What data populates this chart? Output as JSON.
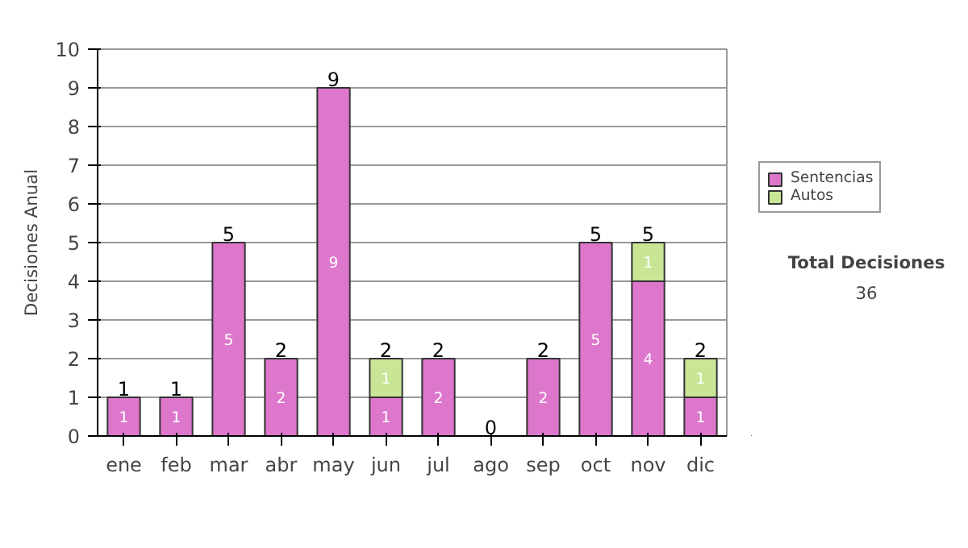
{
  "chart_data": {
    "type": "bar",
    "stacked": true,
    "ylabel": "Decisiones Anual",
    "categories": [
      "ene",
      "feb",
      "mar",
      "abr",
      "may",
      "jun",
      "jul",
      "ago",
      "sep",
      "oct",
      "nov",
      "dic"
    ],
    "series": [
      {
        "name": "Sentencias",
        "color": "#dd77cc",
        "values": [
          1,
          1,
          5,
          2,
          9,
          1,
          2,
          0,
          2,
          5,
          4,
          1
        ],
        "value_labels": [
          "1",
          "1",
          "5",
          "2",
          "9",
          "1",
          "2",
          null,
          "2",
          "5",
          "4",
          "1"
        ]
      },
      {
        "name": "Autos",
        "color": "#c8e696",
        "values": [
          null,
          null,
          null,
          null,
          null,
          1,
          null,
          null,
          null,
          null,
          1,
          1
        ],
        "value_labels": [
          null,
          null,
          null,
          null,
          null,
          "1",
          null,
          null,
          null,
          null,
          "1",
          "1"
        ]
      }
    ],
    "totals": [
      "1",
      "1",
      "5",
      "2",
      "9",
      "2",
      "2",
      "0",
      "2",
      "5",
      "5",
      "2"
    ],
    "ylim": [
      0,
      10
    ],
    "yticks": [
      0,
      1,
      2,
      3,
      4,
      5,
      6,
      7,
      8,
      9,
      10
    ],
    "grid": "y",
    "legend": "right",
    "annotations": [
      "Total Decisiones",
      "36"
    ]
  }
}
